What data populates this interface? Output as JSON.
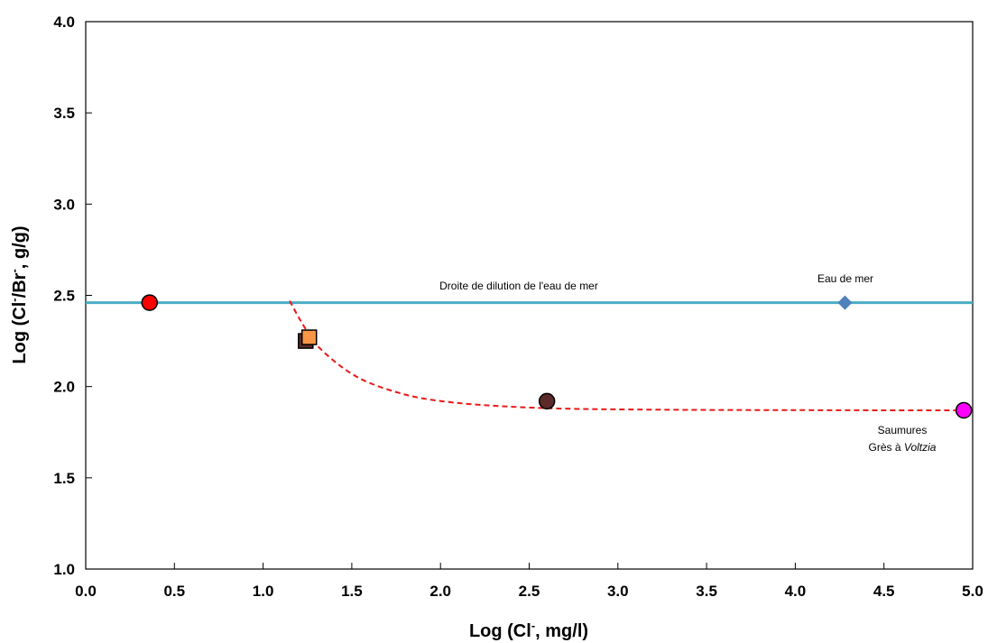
{
  "chart_data": {
    "type": "scatter",
    "xlabel": {
      "pre": "Log (Cl",
      "sup": "-",
      "post": ", mg/l)"
    },
    "ylabel": {
      "pre": "Log (Cl",
      "sup1": "-",
      "mid": "/Br",
      "sup2": "-",
      "post": ", g/g)"
    },
    "xlim": [
      0,
      5
    ],
    "ylim": [
      1,
      4
    ],
    "x_ticks": [
      "0.0",
      "0.5",
      "1.0",
      "1.5",
      "2.0",
      "2.5",
      "3.0",
      "3.5",
      "4.0",
      "4.5",
      "5.0"
    ],
    "y_ticks": [
      "1.0",
      "1.5",
      "2.0",
      "2.5",
      "3.0",
      "3.5",
      "4.0"
    ],
    "grid": false,
    "dilution_line": {
      "y": 2.46,
      "color": "#4BACC6",
      "label": "Droite de dilution  de l'eau de mer"
    },
    "mixing_curve": {
      "color": "#E8191A",
      "x": [
        1.15,
        1.2,
        1.25,
        1.3,
        1.4,
        1.5,
        1.6,
        1.75,
        1.9,
        2.1,
        2.3,
        2.5,
        2.7,
        3.0,
        3.5,
        4.0,
        4.5,
        4.95
      ],
      "y": [
        2.47,
        2.38,
        2.3,
        2.23,
        2.14,
        2.07,
        2.02,
        1.97,
        1.935,
        1.91,
        1.895,
        1.885,
        1.879,
        1.875,
        1.872,
        1.871,
        1.87,
        1.87
      ]
    },
    "points": [
      {
        "x": 0.36,
        "y": 2.46,
        "shape": "circle",
        "color": "#FF0000"
      },
      {
        "x": 1.24,
        "y": 2.25,
        "shape": "square",
        "color": "#5B2B2B"
      },
      {
        "x": 1.26,
        "y": 2.27,
        "shape": "square",
        "color": "#F79646"
      },
      {
        "x": 2.6,
        "y": 1.92,
        "shape": "circle",
        "color": "#5C2A2A"
      },
      {
        "x": 4.28,
        "y": 2.46,
        "shape": "diamond",
        "color": "#4F81BD"
      },
      {
        "x": 4.95,
        "y": 1.87,
        "shape": "circle",
        "color": "#FF00FF"
      }
    ],
    "annotations": {
      "eau_de_mer": "Eau de mer",
      "saumures": "Saumures",
      "gres_prefix": "Grès à ",
      "gres_italic": "Voltzia"
    }
  }
}
